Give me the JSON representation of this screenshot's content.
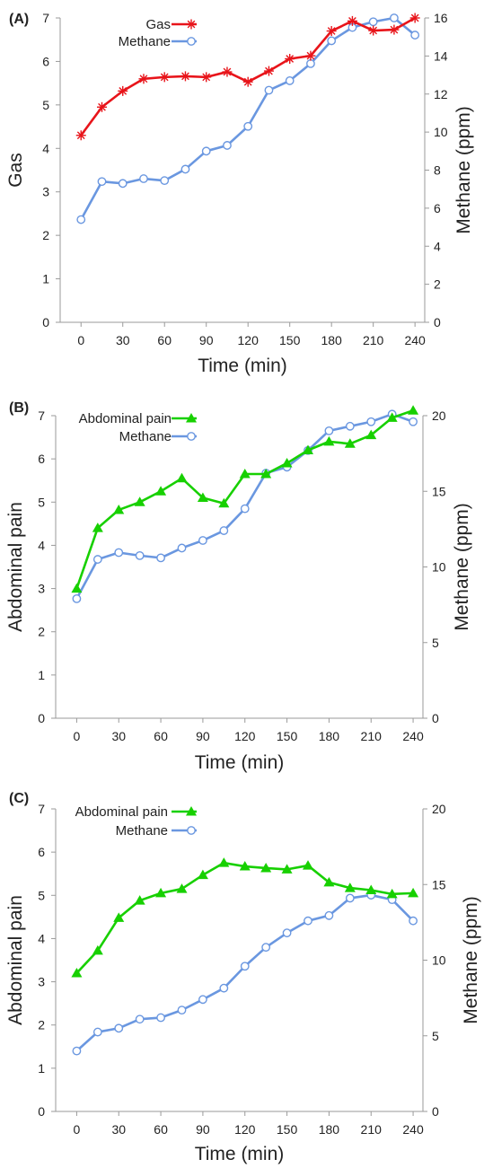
{
  "chart_data": [
    {
      "type": "line",
      "panel_label": "(A)",
      "xlabel": "Time (min)",
      "ylabel": "Gas",
      "ylabel_right": "Methane (ppm)",
      "x": [
        0,
        15,
        30,
        45,
        60,
        75,
        90,
        105,
        120,
        135,
        150,
        165,
        180,
        195,
        210,
        225,
        240
      ],
      "xticks": [
        0,
        30,
        60,
        90,
        120,
        150,
        180,
        210,
        240
      ],
      "xlim": [
        -15,
        247
      ],
      "ylim": [
        0,
        7
      ],
      "yticks": [
        0,
        1,
        2,
        3,
        4,
        5,
        6,
        7
      ],
      "ylim_right": [
        0,
        16
      ],
      "yticks_right": [
        0,
        2,
        4,
        6,
        8,
        10,
        12,
        14,
        16
      ],
      "legend": "top-left",
      "series": [
        {
          "name": "Gas",
          "axis": "left",
          "color": "#e8141a",
          "marker": "asterisk",
          "values": [
            4.3,
            4.95,
            5.32,
            5.6,
            5.64,
            5.66,
            5.64,
            5.76,
            5.53,
            5.78,
            6.06,
            6.13,
            6.7,
            6.93,
            6.71,
            6.73,
            7.0
          ]
        },
        {
          "name": "Methane",
          "axis": "right",
          "color": "#6a97e0",
          "marker": "circle",
          "values": [
            5.4,
            7.4,
            7.3,
            7.55,
            7.45,
            8.05,
            9.0,
            9.3,
            10.3,
            12.2,
            12.7,
            13.6,
            14.8,
            15.5,
            15.8,
            16.0,
            15.1
          ]
        }
      ]
    },
    {
      "type": "line",
      "panel_label": "(B)",
      "xlabel": "Time (min)",
      "ylabel": "Abdominal pain",
      "ylabel_right": "Methane (ppm)",
      "x": [
        0,
        15,
        30,
        45,
        60,
        75,
        90,
        105,
        120,
        135,
        150,
        165,
        180,
        195,
        210,
        225,
        240
      ],
      "xticks": [
        0,
        30,
        60,
        90,
        120,
        150,
        180,
        210,
        240
      ],
      "xlim": [
        -15,
        247
      ],
      "ylim": [
        0,
        7
      ],
      "yticks": [
        0,
        1,
        2,
        3,
        4,
        5,
        6,
        7
      ],
      "ylim_right": [
        0,
        20
      ],
      "yticks_right": [
        0,
        5,
        10,
        15,
        20
      ],
      "legend": "top-left",
      "series": [
        {
          "name": "Abdominal pain",
          "axis": "left",
          "color": "#17d000",
          "marker": "triangle",
          "values": [
            3.0,
            4.4,
            4.82,
            5.0,
            5.25,
            5.55,
            5.1,
            4.97,
            5.65,
            5.65,
            5.9,
            6.2,
            6.4,
            6.35,
            6.55,
            6.95,
            7.12
          ]
        },
        {
          "name": "Methane",
          "axis": "right",
          "color": "#6a97e0",
          "marker": "circle",
          "values": [
            7.9,
            10.5,
            10.95,
            10.75,
            10.6,
            11.25,
            11.75,
            12.4,
            13.85,
            16.2,
            16.6,
            17.7,
            19.0,
            19.3,
            19.6,
            20.1,
            19.6
          ]
        }
      ]
    },
    {
      "type": "line",
      "panel_label": "(C)",
      "xlabel": "Time (min)",
      "ylabel": "Abdominal pain",
      "ylabel_right": "Methane (ppm)",
      "x": [
        0,
        15,
        30,
        45,
        60,
        75,
        90,
        105,
        120,
        135,
        150,
        165,
        180,
        195,
        210,
        225,
        240
      ],
      "xticks": [
        0,
        30,
        60,
        90,
        120,
        150,
        180,
        210,
        240
      ],
      "xlim": [
        -15,
        247
      ],
      "ylim": [
        0,
        7
      ],
      "yticks": [
        0,
        1,
        2,
        3,
        4,
        5,
        6,
        7
      ],
      "ylim_right": [
        0,
        20
      ],
      "yticks_right": [
        0,
        5,
        10,
        15,
        20
      ],
      "legend": "top-left",
      "series": [
        {
          "name": "Abdominal pain",
          "axis": "left",
          "color": "#17d000",
          "marker": "triangle",
          "values": [
            3.2,
            3.72,
            4.48,
            4.88,
            5.05,
            5.15,
            5.47,
            5.75,
            5.67,
            5.63,
            5.6,
            5.69,
            5.3,
            5.17,
            5.12,
            5.03,
            5.05
          ]
        },
        {
          "name": "Methane",
          "axis": "right",
          "color": "#6a97e0",
          "marker": "circle",
          "values": [
            4.0,
            5.25,
            5.5,
            6.1,
            6.2,
            6.7,
            7.4,
            8.15,
            9.6,
            10.85,
            11.8,
            12.6,
            12.95,
            14.1,
            14.3,
            14.0,
            12.6
          ]
        }
      ]
    }
  ]
}
